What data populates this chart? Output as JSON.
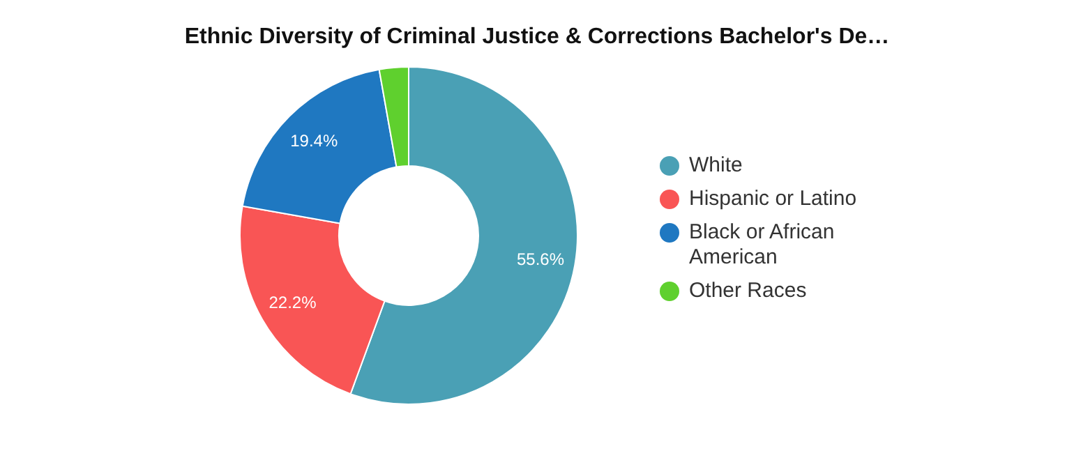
{
  "chart_data": {
    "type": "donut",
    "title": "Ethnic Diversity of Criminal Justice & Corrections Bachelor's De…",
    "categories": [
      "White",
      "Hispanic or Latino",
      "Black or African American",
      "Other Races"
    ],
    "values": [
      55.6,
      22.2,
      19.4,
      2.8
    ],
    "colors": [
      "#4aa0b5",
      "#f95555",
      "#1f78c1",
      "#5fd02e"
    ],
    "value_labels": [
      "55.6%",
      "22.2%",
      "19.4%",
      null
    ],
    "legend": "right"
  }
}
